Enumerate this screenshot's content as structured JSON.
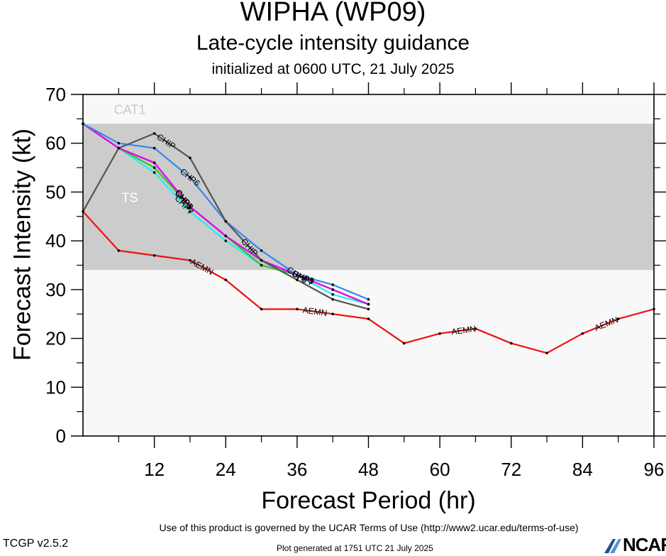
{
  "header": {
    "title": "WIPHA (WP09)",
    "subtitle": "Late-cycle intensity guidance",
    "init_line": "initialized at 0600 UTC, 21 July 2025"
  },
  "footer": {
    "terms": "Use of this product is governed by the UCAR Terms of Use (http://www2.ucar.edu/terms-of-use)",
    "version": "TCGP v2.5.2",
    "generated": "Plot generated at 1751 UTC   21 July 2025",
    "logo": "NCAR"
  },
  "chart_data": {
    "type": "line",
    "xlabel": "Forecast Period (hr)",
    "ylabel": "Forecast Intensity (kt)",
    "xlim": [
      0,
      96
    ],
    "ylim": [
      0,
      70
    ],
    "xticks": [
      12,
      24,
      36,
      48,
      60,
      72,
      84,
      96
    ],
    "yticks": [
      0,
      10,
      20,
      30,
      40,
      50,
      60,
      70
    ],
    "grid": false,
    "bands": [
      {
        "label": "CAT1",
        "from": 64,
        "to": 70,
        "color": "#f8f8f8",
        "label_color": "#cccccc"
      },
      {
        "label": "TS",
        "from": 34,
        "to": 64,
        "color": "#cccccc",
        "label_color": "#ffffff"
      },
      {
        "label": "",
        "from": 0,
        "to": 34,
        "color": "#f8f8f8",
        "label_color": "#cccccc"
      }
    ],
    "series": [
      {
        "name": "AEMN",
        "color": "#ee1111",
        "x": [
          0,
          6,
          12,
          18,
          24,
          30,
          36,
          42,
          48,
          54,
          60,
          66,
          72,
          78,
          84,
          90,
          96
        ],
        "y": [
          46,
          38,
          37,
          36,
          32,
          26,
          26,
          25,
          24,
          19,
          21,
          22,
          19,
          17,
          21,
          24,
          26
        ],
        "label_at": [
          20,
          39,
          64,
          88
        ]
      },
      {
        "name": "CHIP",
        "color": "#555555",
        "x": [
          0,
          6,
          12,
          18,
          24,
          30,
          36,
          42,
          48
        ],
        "y": [
          46,
          59,
          62,
          57,
          44,
          36,
          32,
          28,
          26
        ],
        "label_at": [
          14,
          28
        ]
      },
      {
        "name": "CHP6",
        "color": "#3388ee",
        "x": [
          0,
          6,
          12,
          18,
          24,
          30,
          36,
          42,
          48
        ],
        "y": [
          64,
          60,
          59,
          53,
          44,
          38,
          33,
          31,
          28
        ],
        "label_at": [
          18,
          36
        ]
      },
      {
        "name": "CHP1",
        "color": "#ee00ee",
        "x": [
          0,
          6,
          12,
          18,
          24,
          30,
          36,
          42,
          48
        ],
        "y": [
          64,
          59,
          56,
          47,
          41,
          36,
          33,
          30,
          27
        ],
        "label_at": [
          17,
          37
        ]
      },
      {
        "name": "CHP3",
        "color": "#22cc22",
        "x": [
          0,
          6,
          12,
          18,
          24,
          30,
          36,
          42,
          48
        ],
        "y": [
          64,
          59,
          55,
          47,
          41,
          35,
          33,
          30,
          27
        ],
        "label_at": [
          17,
          37
        ]
      },
      {
        "name": "CHP5",
        "color": "#2222ee",
        "x": [
          0,
          6,
          12,
          18,
          24,
          30,
          36,
          42,
          48
        ],
        "y": [
          64,
          59,
          56,
          47,
          41,
          36,
          33,
          30,
          27
        ],
        "label_at": [
          17,
          37
        ]
      },
      {
        "name": "CHP7",
        "color": "#22eeee",
        "x": [
          0,
          6,
          12,
          18,
          24,
          30,
          36,
          42,
          48
        ],
        "y": [
          64,
          59,
          54,
          46,
          40,
          35,
          33,
          29,
          27
        ],
        "label_at": [
          17,
          37
        ]
      }
    ]
  }
}
